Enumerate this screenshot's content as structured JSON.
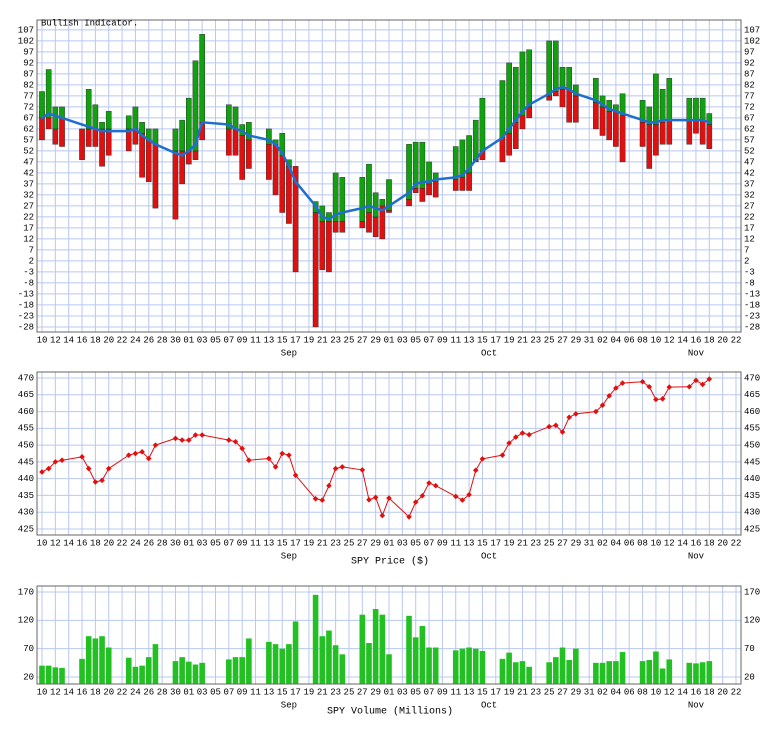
{
  "chart_data": [
    {
      "type": "floating_bar",
      "title": "Bullish Indicator.",
      "grid": true,
      "grid_color": "#b8c8f0",
      "categories": [
        "10",
        null,
        "12",
        null,
        "14",
        null,
        "16",
        null,
        "18",
        null,
        "20",
        null,
        "22",
        null,
        "24",
        null,
        "26",
        null,
        "28",
        null,
        "30",
        null,
        "01",
        null,
        "03",
        null,
        "05",
        null,
        "07",
        null,
        "09",
        null,
        "11",
        null,
        "13",
        null,
        "15",
        null,
        "17",
        null,
        "19",
        null,
        "21",
        null,
        "23",
        null,
        "25",
        null,
        "27",
        null,
        "29",
        null,
        "01",
        null,
        "03",
        null,
        "05",
        null,
        "07",
        null,
        "09",
        null,
        "11",
        null,
        "13",
        null,
        "15",
        null,
        "17",
        null,
        "19",
        null,
        "21",
        null,
        "23",
        null,
        "25",
        null,
        "27",
        null,
        "29",
        null,
        "31",
        null,
        "02",
        null,
        "04",
        null,
        "06",
        null,
        "08",
        null,
        "10",
        null,
        "12",
        null,
        "14",
        null,
        "16",
        null,
        "18",
        null,
        "20",
        null,
        "22"
      ],
      "month_labels": [
        "Sep",
        "Oct",
        "Nov"
      ],
      "ylim": [
        -30.3,
        111.5
      ],
      "yticks": [
        -28,
        -23,
        -18,
        -13,
        -8,
        -3,
        2,
        7,
        12,
        17,
        22,
        27,
        32,
        37,
        42,
        47,
        52,
        57,
        62,
        67,
        72,
        77,
        82,
        87,
        92,
        97,
        102,
        107
      ],
      "up": {
        "color": "#10a010",
        "low": [
          67,
          67,
          62,
          67,
          null,
          null,
          null,
          62,
          62,
          62,
          62,
          null,
          null,
          62,
          62,
          60,
          57,
          55,
          null,
          null,
          52,
          52,
          52,
          52,
          65,
          null,
          null,
          null,
          62,
          62,
          59,
          57,
          null,
          null,
          55,
          55,
          50,
          45,
          null,
          null,
          null,
          24,
          20,
          20,
          20,
          20,
          null,
          null,
          20,
          24,
          22,
          27,
          25,
          null,
          null,
          30,
          35,
          35,
          37,
          38,
          null,
          null,
          39,
          40,
          42,
          48,
          52,
          null,
          null,
          58,
          60,
          65,
          68,
          72,
          null,
          null,
          77,
          79,
          80,
          80,
          77,
          null,
          null,
          74,
          72,
          70,
          70,
          68,
          null,
          null,
          65,
          64,
          64,
          65,
          66,
          null,
          null,
          66,
          66,
          66,
          64,
          null,
          null,
          null,
          null
        ],
        "high": [
          79,
          89,
          72,
          72,
          null,
          null,
          null,
          80,
          73,
          65,
          70,
          null,
          null,
          68,
          72,
          65,
          62,
          62,
          null,
          null,
          62,
          66,
          76,
          93,
          105,
          null,
          null,
          null,
          73,
          72,
          64,
          65,
          null,
          null,
          62,
          57,
          60,
          48,
          null,
          null,
          null,
          29,
          27,
          24,
          42,
          40,
          null,
          null,
          40,
          46,
          33,
          30,
          39,
          null,
          null,
          55,
          56,
          56,
          47,
          42,
          null,
          null,
          54,
          57,
          59,
          66,
          76,
          null,
          null,
          84,
          92,
          90,
          97,
          98,
          null,
          null,
          102,
          102,
          90,
          90,
          82,
          null,
          null,
          85,
          77,
          75,
          73,
          78,
          null,
          null,
          75,
          72,
          87,
          80,
          85,
          null,
          null,
          76,
          76,
          76,
          69,
          null,
          null,
          null,
          null
        ]
      },
      "down": {
        "color": "#e01010",
        "low": [
          57,
          62,
          55,
          54,
          null,
          null,
          48,
          54,
          54,
          45,
          50,
          null,
          null,
          52,
          55,
          40,
          38,
          26,
          null,
          null,
          21,
          37,
          46,
          48,
          57,
          null,
          null,
          null,
          50,
          50,
          39,
          44,
          null,
          null,
          39,
          32,
          24,
          19,
          -3,
          null,
          null,
          -28,
          -2,
          -3,
          15,
          15,
          null,
          null,
          17,
          15,
          13,
          12,
          24,
          null,
          null,
          27,
          33,
          29,
          32,
          31,
          null,
          null,
          34,
          34,
          34,
          47,
          48,
          null,
          null,
          47,
          50,
          53,
          62,
          67,
          null,
          null,
          75,
          77,
          72,
          65,
          65,
          null,
          null,
          62,
          59,
          57,
          54,
          47,
          null,
          null,
          54,
          44,
          50,
          55,
          55,
          null,
          null,
          55,
          60,
          55,
          53,
          null,
          null,
          null,
          null
        ],
        "high": [
          70,
          67,
          67,
          67,
          null,
          null,
          62,
          62,
          62,
          62,
          62,
          null,
          null,
          62,
          62,
          62,
          57,
          55,
          null,
          null,
          52,
          52,
          52,
          52,
          65,
          null,
          null,
          null,
          65,
          62,
          59,
          57,
          null,
          null,
          55,
          55,
          50,
          45,
          45,
          null,
          null,
          24,
          20,
          20,
          20,
          20,
          null,
          null,
          20,
          24,
          22,
          27,
          25,
          null,
          null,
          30,
          35,
          35,
          37,
          38,
          null,
          null,
          39,
          40,
          42,
          48,
          52,
          null,
          null,
          58,
          60,
          65,
          68,
          72,
          null,
          null,
          77,
          79,
          80,
          80,
          77,
          null,
          null,
          74,
          72,
          70,
          70,
          68,
          null,
          null,
          65,
          64,
          64,
          65,
          66,
          null,
          null,
          66,
          66,
          66,
          64,
          null,
          null,
          null,
          null
        ]
      },
      "line": {
        "color": "#1e6fd0",
        "values": [
          67,
          69,
          68,
          67,
          null,
          null,
          64,
          63,
          62,
          61,
          61,
          null,
          null,
          61,
          62,
          59,
          57,
          55,
          null,
          null,
          51,
          50,
          52,
          55,
          65,
          null,
          null,
          null,
          64,
          62,
          61,
          59,
          null,
          null,
          57,
          55,
          51,
          45,
          38,
          null,
          null,
          27,
          22,
          21,
          23,
          24,
          null,
          null,
          26,
          27,
          26,
          25,
          27,
          null,
          null,
          33,
          37,
          38,
          38,
          39,
          null,
          null,
          40,
          41,
          44,
          48,
          52,
          null,
          null,
          58,
          62,
          66,
          70,
          73,
          null,
          null,
          78,
          80,
          81,
          80,
          78,
          null,
          null,
          75,
          73,
          71,
          70,
          69,
          null,
          null,
          66,
          65,
          65,
          66,
          66,
          null,
          null,
          66,
          66,
          66,
          65,
          null,
          null,
          null,
          null
        ]
      }
    },
    {
      "type": "line",
      "title": "SPY Price ($)",
      "grid": true,
      "grid_color": "#b8c8f0",
      "color": "#e01010",
      "categories": [
        "10",
        null,
        "12",
        null,
        "14",
        null,
        "16",
        null,
        "18",
        null,
        "20",
        null,
        "22",
        null,
        "24",
        null,
        "26",
        null,
        "28",
        null,
        "30",
        null,
        "01",
        null,
        "03",
        null,
        "05",
        null,
        "07",
        null,
        "09",
        null,
        "11",
        null,
        "13",
        null,
        "15",
        null,
        "17",
        null,
        "19",
        null,
        "21",
        null,
        "23",
        null,
        "25",
        null,
        "27",
        null,
        "29",
        null,
        "01",
        null,
        "03",
        null,
        "05",
        null,
        "07",
        null,
        "09",
        null,
        "11",
        null,
        "13",
        null,
        "15",
        null,
        "17",
        null,
        "19",
        null,
        "21",
        null,
        "23",
        null,
        "25",
        null,
        "27",
        null,
        "29",
        null,
        "31",
        null,
        "02",
        null,
        "04",
        null,
        "06",
        null,
        "08",
        null,
        "10",
        null,
        "12",
        null,
        "14",
        null,
        "16",
        null,
        "18",
        null,
        "20",
        null,
        "22"
      ],
      "month_labels": [
        "Sep",
        "Oct",
        "Nov"
      ],
      "ylim": [
        423.2,
        471.8
      ],
      "yticks": [
        425,
        430,
        435,
        440,
        445,
        450,
        455,
        460,
        465,
        470
      ],
      "values": [
        442,
        443,
        445,
        445.5,
        null,
        null,
        446.5,
        443,
        439,
        439.5,
        443,
        null,
        null,
        447,
        447.5,
        448,
        446,
        450,
        null,
        null,
        452,
        451.5,
        451.5,
        453,
        453,
        null,
        null,
        null,
        451.5,
        451,
        449,
        445.5,
        null,
        null,
        446,
        443.5,
        447.5,
        447,
        441,
        null,
        null,
        434,
        433.6,
        437.9,
        443,
        443.5,
        null,
        null,
        442.6,
        433.7,
        434.4,
        429,
        434.2,
        null,
        null,
        428.6,
        433,
        434.9,
        438.7,
        437.9,
        null,
        null,
        434.7,
        433.6,
        435.2,
        442.5,
        445.9,
        null,
        null,
        447,
        450.6,
        452.4,
        453.6,
        453.1,
        null,
        null,
        455.5,
        455.9,
        453.9,
        458.3,
        459.3,
        null,
        null,
        460,
        461.9,
        464.7,
        467,
        468.5,
        null,
        null,
        468.9,
        467.4,
        463.6,
        463.8,
        467.3,
        null,
        null,
        467.4,
        469.3,
        468.1,
        469.7,
        null,
        null,
        null,
        null
      ]
    },
    {
      "type": "bar",
      "title": "SPY Volume (Millions)",
      "grid": true,
      "grid_color": "#b8c8f0",
      "color": "#22c022",
      "categories": [
        "10",
        null,
        "12",
        null,
        "14",
        null,
        "16",
        null,
        "18",
        null,
        "20",
        null,
        "22",
        null,
        "24",
        null,
        "26",
        null,
        "28",
        null,
        "30",
        null,
        "01",
        null,
        "03",
        null,
        "05",
        null,
        "07",
        null,
        "09",
        null,
        "11",
        null,
        "13",
        null,
        "15",
        null,
        "17",
        null,
        "19",
        null,
        "21",
        null,
        "23",
        null,
        "25",
        null,
        "27",
        null,
        "29",
        null,
        "01",
        null,
        "03",
        null,
        "05",
        null,
        "07",
        null,
        "09",
        null,
        "11",
        null,
        "13",
        null,
        "15",
        null,
        "17",
        null,
        "19",
        null,
        "21",
        null,
        "23",
        null,
        "25",
        null,
        "27",
        null,
        "29",
        null,
        "31",
        null,
        "02",
        null,
        "04",
        null,
        "06",
        null,
        "08",
        null,
        "10",
        null,
        "12",
        null,
        "14",
        null,
        "16",
        null,
        "18",
        null,
        "20",
        null,
        "22"
      ],
      "month_labels": [
        "Sep",
        "Oct",
        "Nov"
      ],
      "ylim": [
        7.6,
        180.6
      ],
      "yticks": [
        20,
        70,
        120,
        170
      ],
      "values": [
        40,
        40,
        37,
        36,
        null,
        null,
        52,
        92,
        88,
        92,
        72,
        null,
        null,
        54,
        38,
        40,
        55,
        78,
        null,
        null,
        48,
        55,
        47,
        42,
        45,
        null,
        null,
        null,
        51,
        55,
        55,
        88,
        null,
        null,
        82,
        78,
        70,
        78,
        118,
        null,
        null,
        165,
        92,
        102,
        76,
        60,
        null,
        null,
        130,
        80,
        140,
        130,
        60,
        null,
        null,
        128,
        90,
        110,
        72,
        72,
        null,
        null,
        67,
        70,
        72,
        70,
        66,
        null,
        null,
        52,
        63,
        46,
        48,
        38,
        null,
        null,
        46,
        55,
        72,
        50,
        70,
        null,
        null,
        45,
        45,
        48,
        48,
        64,
        null,
        null,
        48,
        50,
        65,
        35,
        51,
        null,
        null,
        45,
        44,
        46,
        48,
        null,
        null,
        null,
        null
      ]
    }
  ]
}
